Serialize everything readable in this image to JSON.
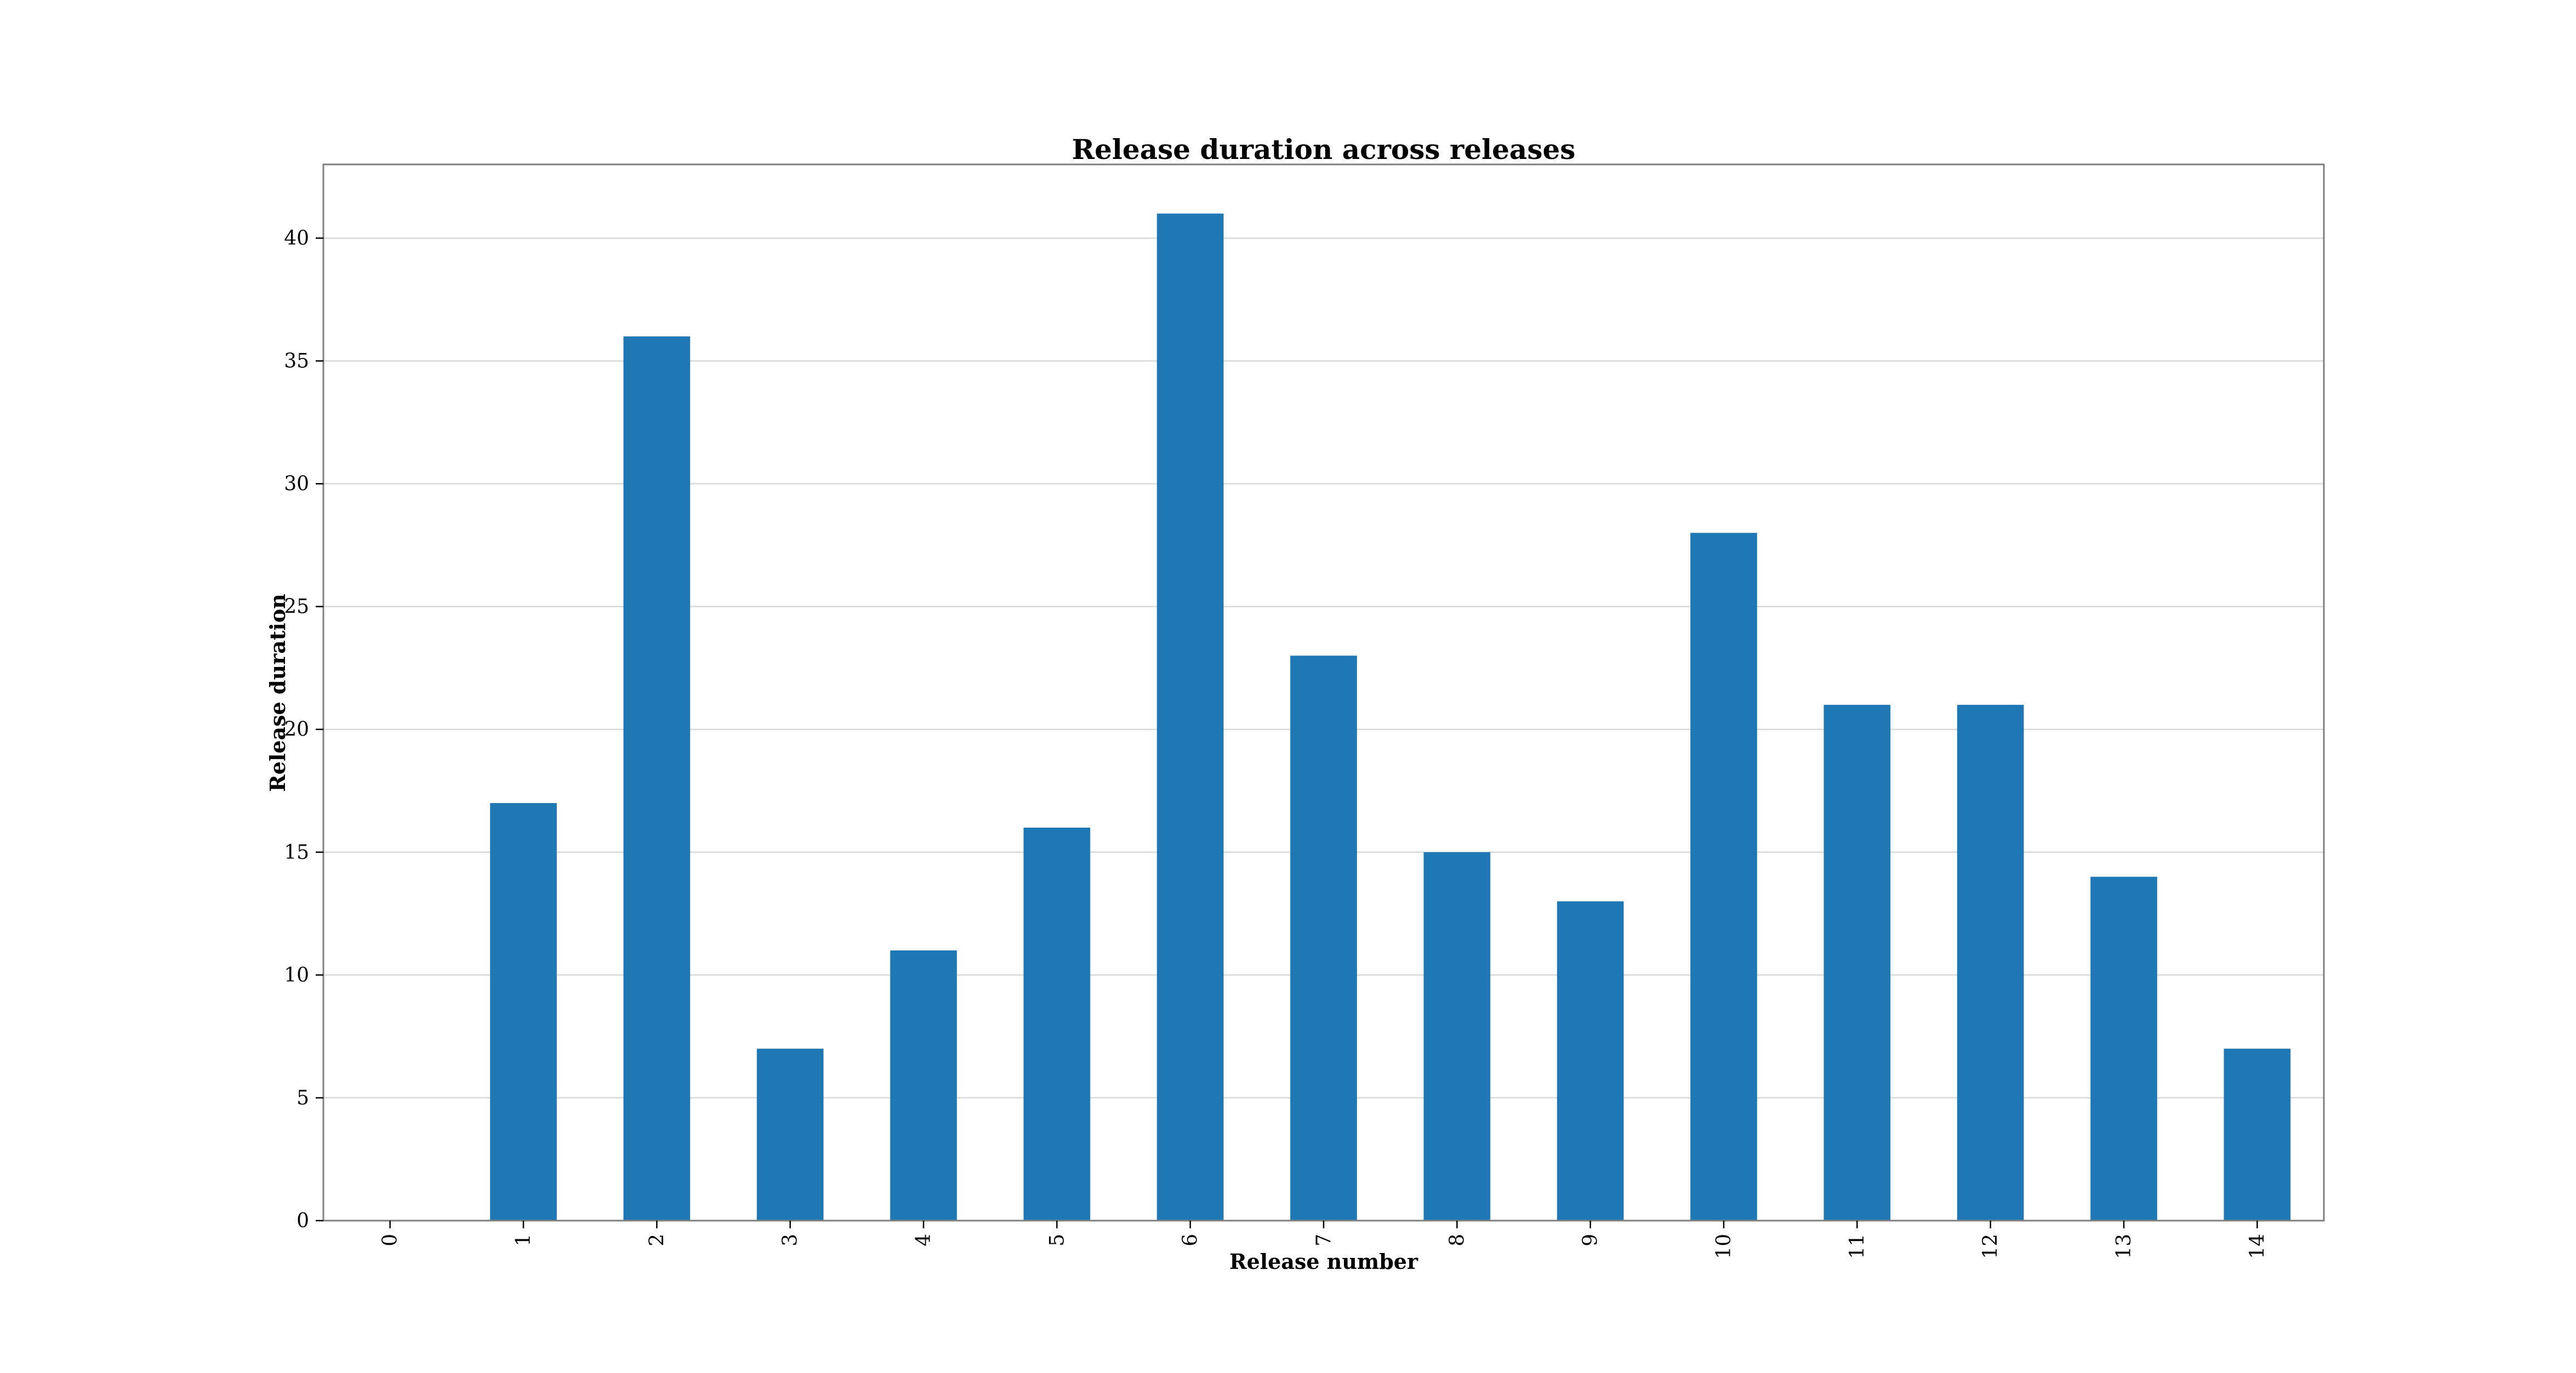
{
  "chart_data": {
    "type": "bar",
    "title": "Release duration across releases",
    "xlabel": "Release number",
    "ylabel": "Release duration",
    "categories": [
      "0",
      "1",
      "2",
      "3",
      "4",
      "5",
      "6",
      "7",
      "8",
      "9",
      "10",
      "11",
      "12",
      "13",
      "14"
    ],
    "values": [
      0,
      17,
      36,
      7,
      11,
      16,
      41,
      23,
      15,
      13,
      28,
      21,
      21,
      14,
      7
    ],
    "ylim": [
      0,
      43
    ],
    "yticks": [
      0,
      5,
      10,
      15,
      20,
      25,
      30,
      35,
      40
    ],
    "grid": "y",
    "legend": "none",
    "colors": {
      "bar": "#1f77b4",
      "grid": "#d9d9d9",
      "frame": "#808080"
    }
  }
}
